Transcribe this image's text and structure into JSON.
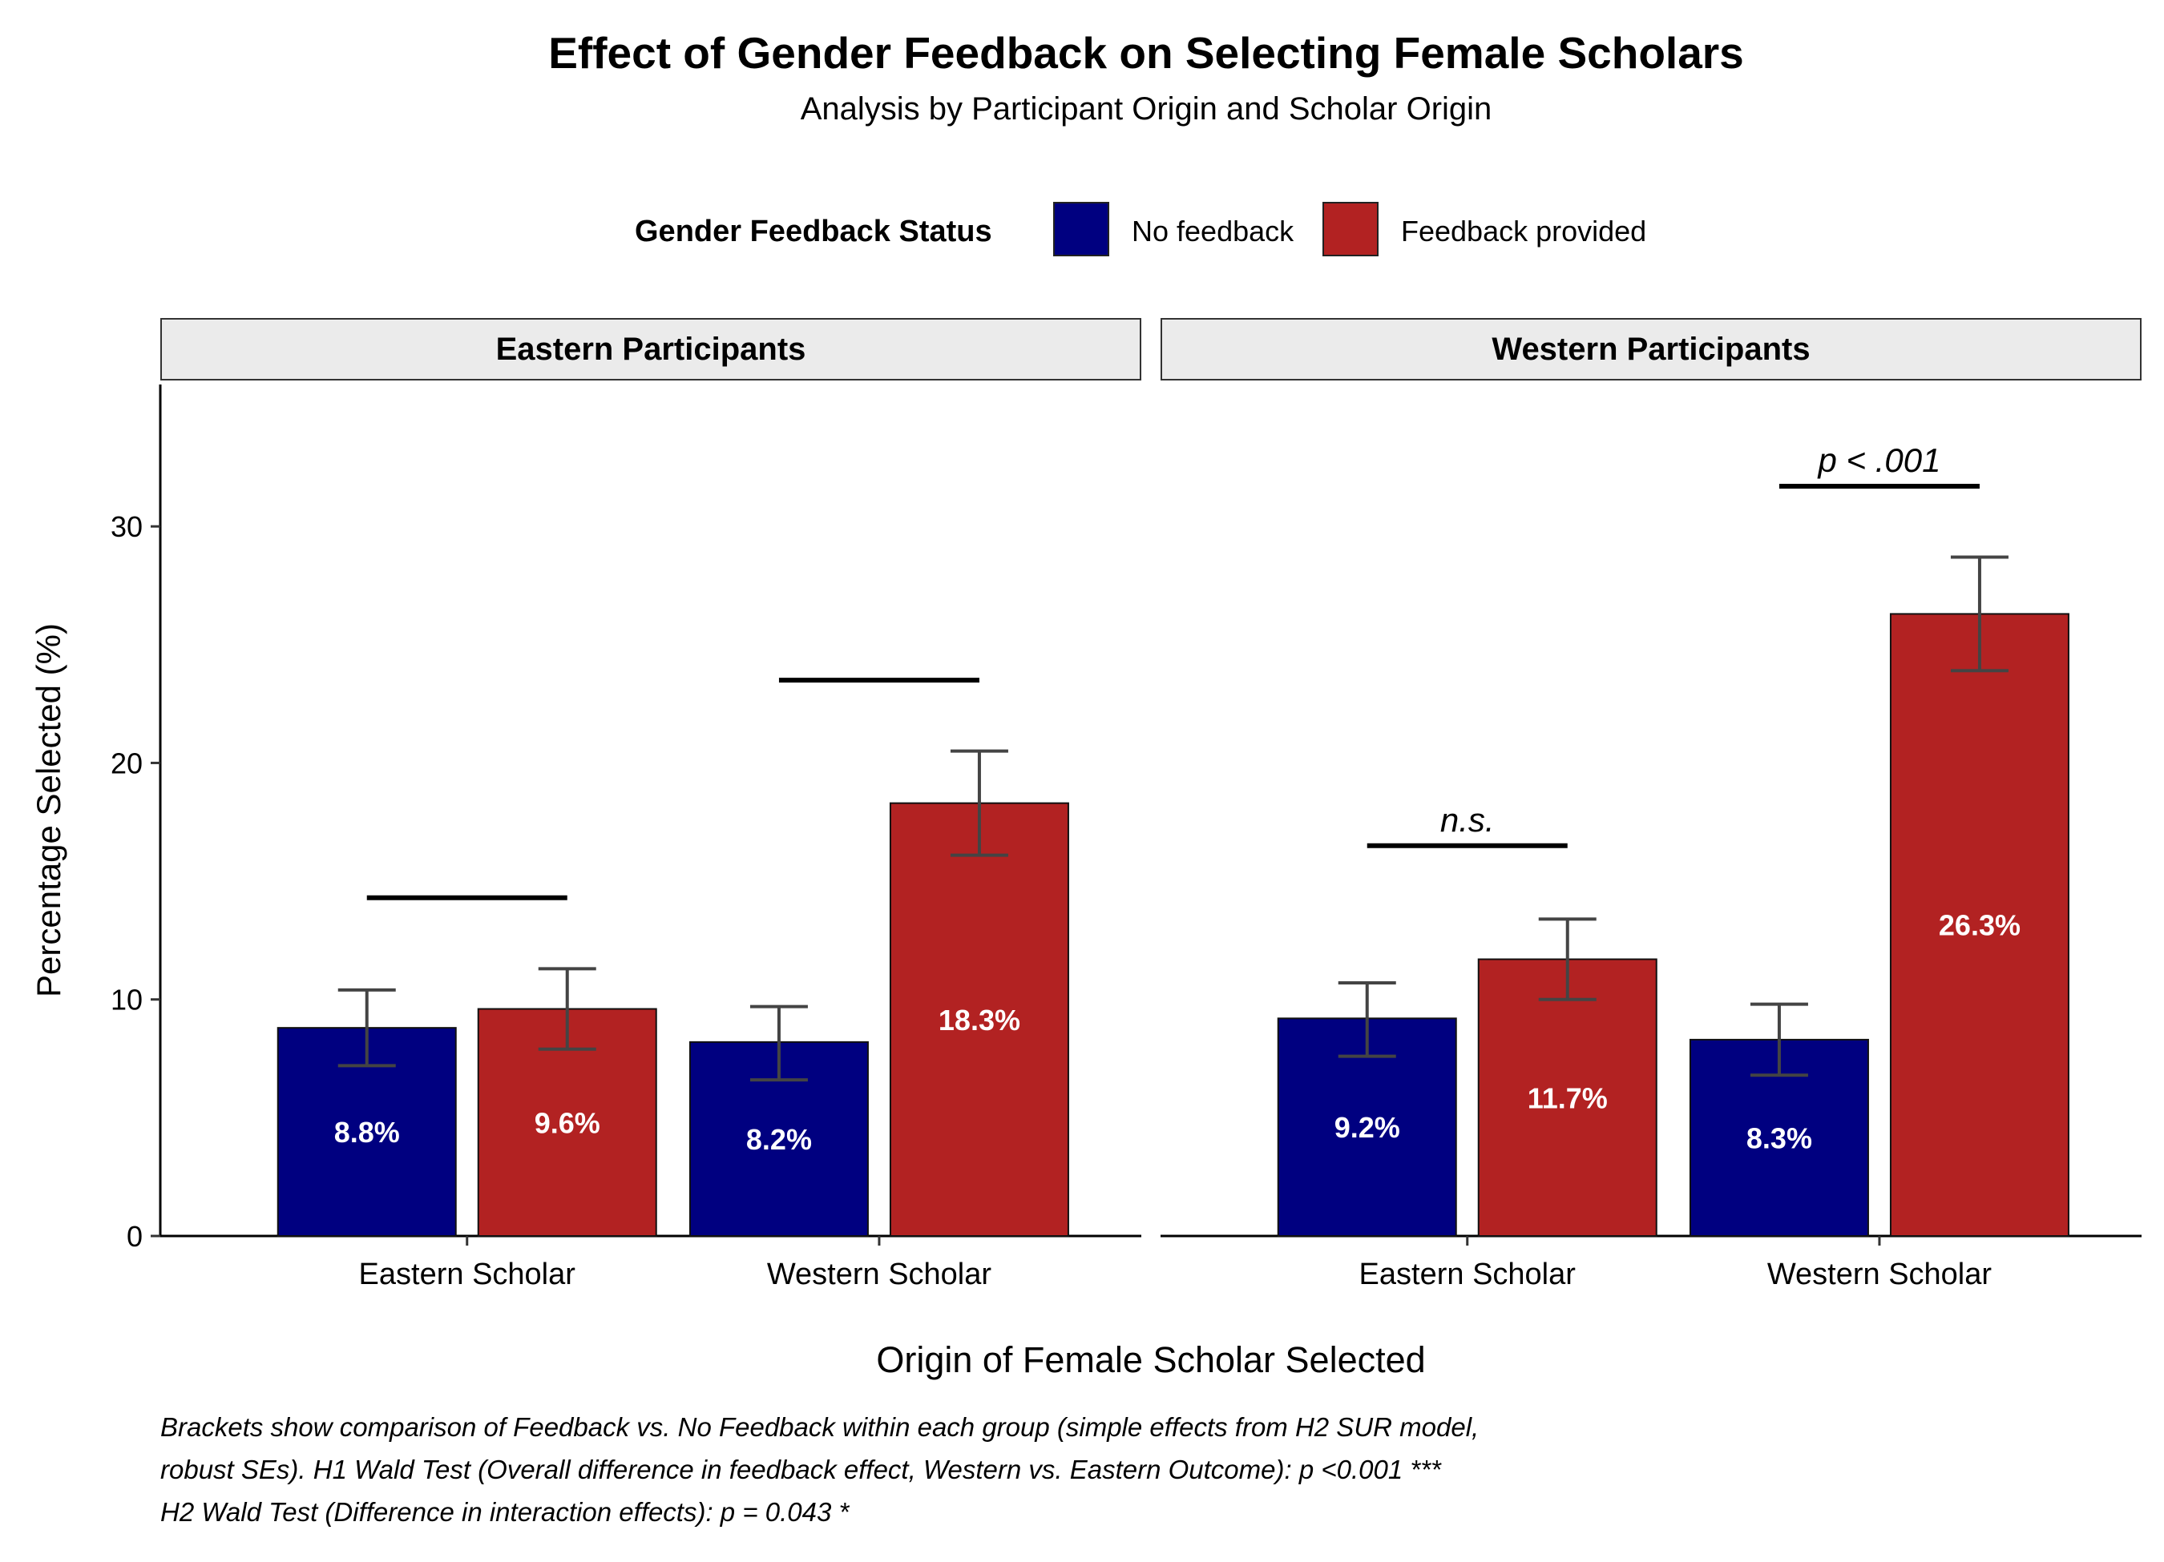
{
  "title": "Effect of Gender Feedback on Selecting Female Scholars",
  "subtitle": "Analysis by Participant Origin and Scholar Origin",
  "legend": {
    "title": "Gender Feedback Status",
    "items": [
      {
        "label": "No feedback",
        "color": "#000080"
      },
      {
        "label": "Feedback provided",
        "color": "#B22222"
      }
    ]
  },
  "captions": [
    "Brackets show comparison of Feedback vs. No Feedback within each group (simple effects from H2 SUR model,",
    "robust SEs). H1 Wald Test (Overall difference in feedback effect, Western vs. Eastern Outcome): p <0.001 ***",
    "H2 Wald Test (Difference in interaction effects): p = 0.043 *"
  ],
  "chart_data": {
    "type": "bar",
    "xlabel": "Origin of Female Scholar Selected",
    "ylabel": "Percentage Selected (%)",
    "ylim": [
      0,
      36
    ],
    "yticks": [
      0,
      10,
      20,
      30
    ],
    "categories": [
      "Eastern Scholar",
      "Western Scholar"
    ],
    "grid": false,
    "legend_position": "top",
    "facets": [
      {
        "name": "Eastern Participants",
        "series": [
          {
            "name": "No feedback",
            "values": [
              8.8,
              8.2
            ],
            "labels": [
              "8.8%",
              "8.2%"
            ],
            "error_low": [
              7.2,
              6.6
            ],
            "error_high": [
              10.4,
              9.7
            ]
          },
          {
            "name": "Feedback provided",
            "values": [
              9.6,
              18.3
            ],
            "labels": [
              "9.6%",
              "18.3%"
            ],
            "error_low": [
              7.9,
              16.1
            ],
            "error_high": [
              11.3,
              20.5
            ]
          }
        ],
        "brackets": [
          {
            "category": "Eastern Scholar",
            "y": 14.3,
            "label": ""
          },
          {
            "category": "Western Scholar",
            "y": 23.5,
            "label": ""
          }
        ]
      },
      {
        "name": "Western Participants",
        "series": [
          {
            "name": "No feedback",
            "values": [
              9.2,
              8.3
            ],
            "labels": [
              "9.2%",
              "8.3%"
            ],
            "error_low": [
              7.6,
              6.8
            ],
            "error_high": [
              10.7,
              9.8
            ]
          },
          {
            "name": "Feedback provided",
            "values": [
              11.7,
              26.3
            ],
            "labels": [
              "11.7%",
              "26.3%"
            ],
            "error_low": [
              10.0,
              23.9
            ],
            "error_high": [
              13.4,
              28.7
            ]
          }
        ],
        "brackets": [
          {
            "category": "Eastern Scholar",
            "y": 16.5,
            "label": "n.s."
          },
          {
            "category": "Western Scholar",
            "y": 31.7,
            "label": "p < .001"
          }
        ]
      }
    ]
  }
}
